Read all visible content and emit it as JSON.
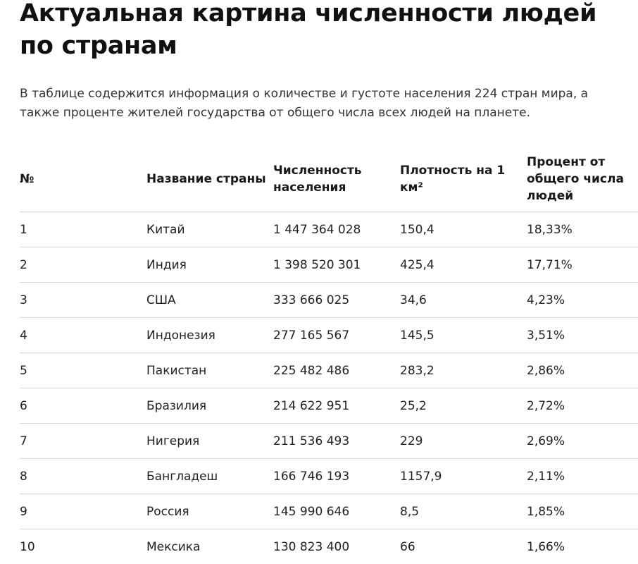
{
  "title": "Актуальная картина численности людей по странам",
  "lead": "В таблице содержится информация о количестве и густоте населения 224 стран мира, а также проценте жителей государства от общего числа всех людей на планете.",
  "table": {
    "headers": [
      "№",
      "Название страны",
      "Численность населения",
      "Плотность на 1 км²",
      "Процент от общего числа людей"
    ],
    "rows": [
      [
        "1",
        "Китай",
        "1 447 364 028",
        "150,4",
        "18,33%"
      ],
      [
        "2",
        "Индия",
        "1 398 520 301",
        "425,4",
        "17,71%"
      ],
      [
        "3",
        "США",
        "333 666 025",
        "34,6",
        "4,23%"
      ],
      [
        "4",
        "Индонезия",
        "277 165 567",
        "145,5",
        "3,51%"
      ],
      [
        "5",
        "Пакистан",
        "225 482 486",
        "283,2",
        "2,86%"
      ],
      [
        "6",
        "Бразилия",
        "214 622 951",
        "25,2",
        "2,72%"
      ],
      [
        "7",
        "Нигерия",
        "211 536 493",
        "229",
        "2,69%"
      ],
      [
        "8",
        "Бангладеш",
        "166 746 193",
        "1157,9",
        "2,11%"
      ],
      [
        "9",
        "Россия",
        "145 990 646",
        "8,5",
        "1,85%"
      ],
      [
        "10",
        "Мексика",
        "130 823 400",
        "66",
        "1,66%"
      ]
    ]
  }
}
